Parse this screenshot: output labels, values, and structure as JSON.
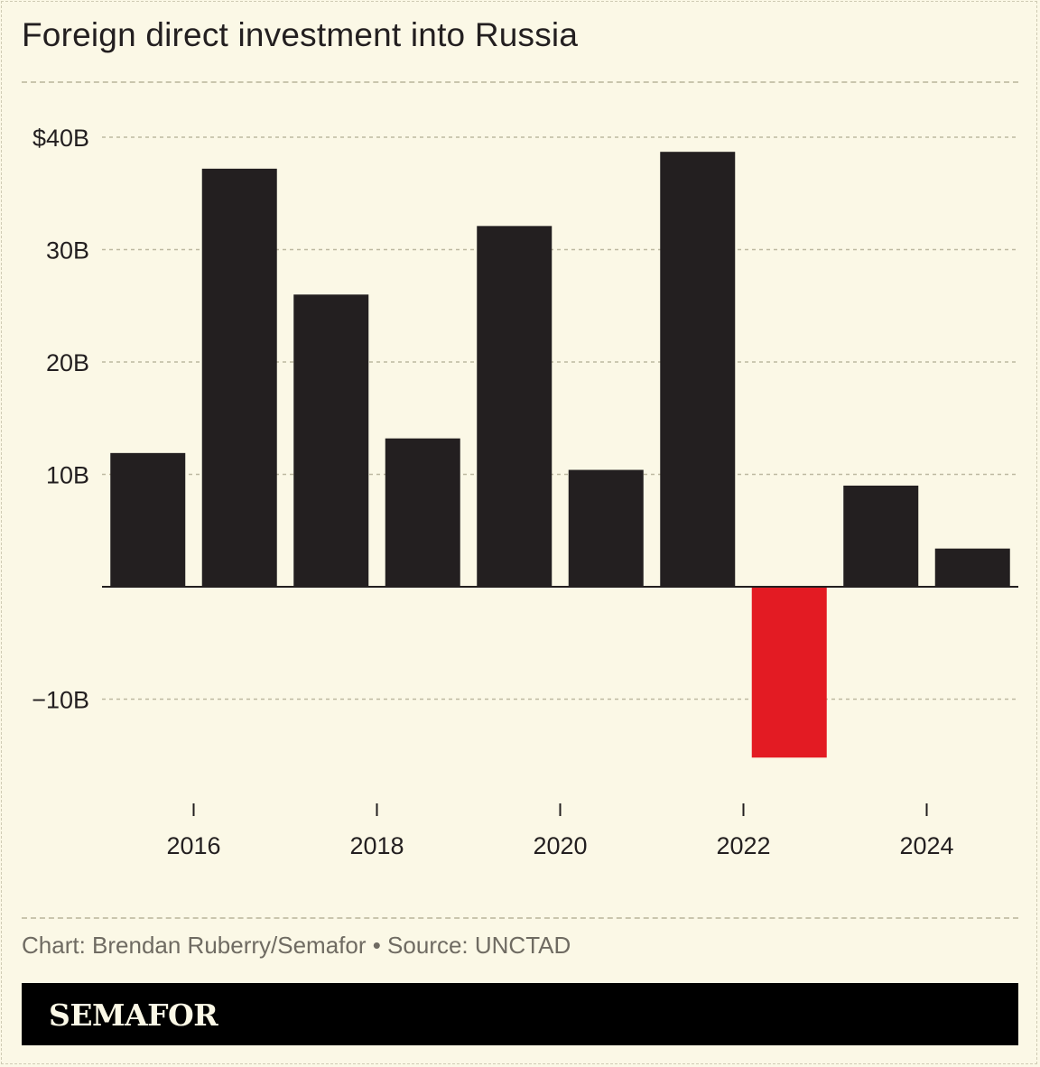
{
  "title": "Foreign direct investment into Russia",
  "source": "Chart: Brendan Ruberry/Semafor • Source: UNCTAD",
  "brand": "SEMAFOR",
  "colors": {
    "background": "#fbf8e6",
    "bar": "#231f20",
    "negative_bar": "#e31b23",
    "grid": "#bdb9a1",
    "footer": "#000000"
  },
  "chart_data": {
    "type": "bar",
    "title": "Foreign direct investment into Russia",
    "categories": [
      2015,
      2016,
      2017,
      2018,
      2019,
      2020,
      2021,
      2022,
      2023,
      2024
    ],
    "values": [
      11.9,
      37.2,
      26.0,
      13.2,
      32.1,
      10.4,
      38.7,
      -15.2,
      9.0,
      3.4
    ],
    "x_tick_labels": [
      "2016",
      "2018",
      "2020",
      "2022",
      "2024"
    ],
    "x_tick_years": [
      2016,
      2018,
      2020,
      2022,
      2024
    ],
    "y_ticks": [
      {
        "value": 40,
        "label": "$40B"
      },
      {
        "value": 30,
        "label": "30B"
      },
      {
        "value": 20,
        "label": "20B"
      },
      {
        "value": 10,
        "label": "10B"
      },
      {
        "value": -10,
        "label": "−10B"
      }
    ],
    "ylim": [
      -18,
      40
    ],
    "grid": true,
    "highlight": {
      "category": 2022,
      "color": "#e31b23"
    }
  }
}
